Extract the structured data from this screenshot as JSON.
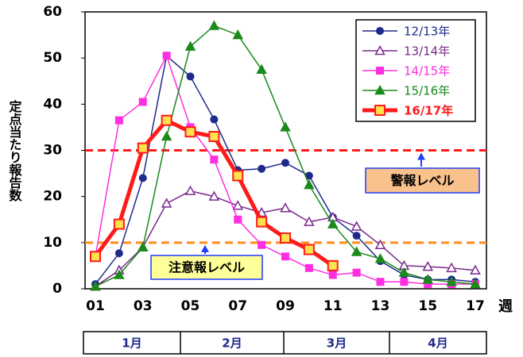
{
  "chart_data": {
    "type": "line",
    "y_label": "定点当たり報告数",
    "x_label": "週",
    "categories": [
      "01",
      "02",
      "03",
      "04",
      "05",
      "06",
      "07",
      "08",
      "09",
      "10",
      "11",
      "12",
      "13",
      "14",
      "15",
      "16",
      "17"
    ],
    "xticks_shown": [
      "01",
      "03",
      "05",
      "07",
      "09",
      "11",
      "13",
      "15",
      "17"
    ],
    "ylim": [
      0,
      60
    ],
    "yticks": [
      0,
      10,
      20,
      30,
      40,
      50,
      60
    ],
    "legend": "upper right",
    "series": [
      {
        "name": "12/13年",
        "color": "#1f2a8c",
        "marker": "circle",
        "marker_fill": "#1f2a8c",
        "width": 1.5,
        "values": [
          1,
          7.7,
          24,
          50.5,
          46,
          36.7,
          25.7,
          26,
          27.3,
          24.5,
          15.5,
          11.5,
          6,
          3,
          2,
          2,
          1.5
        ]
      },
      {
        "name": "13/14年",
        "color": "#7b2a8e",
        "marker": "triangle",
        "marker_fill": "#ffffff",
        "width": 1.5,
        "values": [
          0.5,
          4,
          9,
          18.5,
          21.2,
          20,
          18,
          16.5,
          17.5,
          14.5,
          15.5,
          13.5,
          9.5,
          5,
          4.8,
          4.5,
          4
        ]
      },
      {
        "name": "14/15年",
        "color": "#ff2ee0",
        "marker": "square",
        "marker_fill": "#ff2ee0",
        "width": 1.5,
        "values": [
          7,
          36.5,
          40.5,
          50.5,
          35,
          28,
          15,
          9.5,
          7,
          4.5,
          3,
          3.5,
          1.5,
          1.5,
          1,
          1,
          1
        ]
      },
      {
        "name": "15/16年",
        "color": "#1a8a1a",
        "marker": "triangle",
        "marker_fill": "#1a8a1a",
        "width": 1.5,
        "values": [
          0.5,
          3,
          9,
          33,
          52.5,
          57,
          55,
          47.5,
          35,
          22.5,
          14,
          8,
          6.5,
          3.5,
          2,
          1.5,
          1
        ]
      },
      {
        "name": "16/17年",
        "color": "#ff1a1a",
        "marker": "square",
        "marker_fill": "#ffe14d",
        "width": 5,
        "values": [
          7,
          14,
          30.5,
          36.5,
          34,
          33,
          24.5,
          14.5,
          11,
          8.5,
          5,
          null,
          null,
          null,
          null,
          null,
          null
        ]
      }
    ],
    "reference_lines": [
      {
        "value": 30,
        "label": "警報レベル",
        "color": "#ff1a1a",
        "box_fill": "#f9c18c"
      },
      {
        "value": 10,
        "label": "注意報レベル",
        "color": "#ff8c1a",
        "box_fill": "#ffff99"
      }
    ],
    "months": [
      "1月",
      "2月",
      "3月",
      "4月"
    ]
  }
}
